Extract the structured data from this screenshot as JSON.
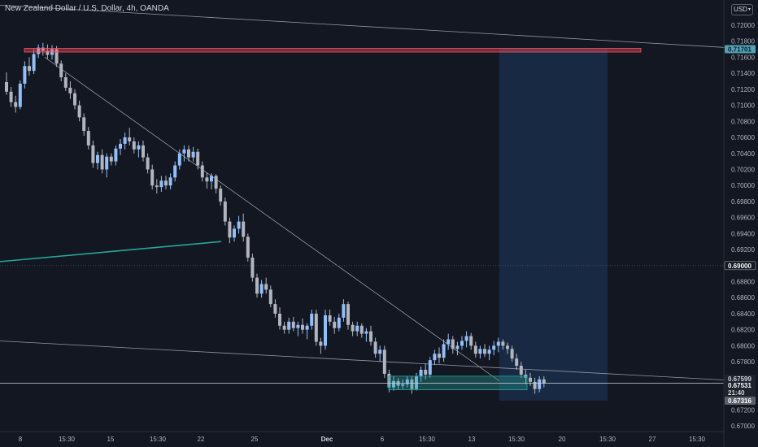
{
  "header": {
    "title": "New Zealand Dollar / U.S. Dollar, 4h, OANDA",
    "currency": "USD"
  },
  "colors": {
    "background": "#131722",
    "candle_up": "#90bff9",
    "candle_down": "#b2b5be",
    "resistance_zone": "#f7525f",
    "target_zone": "#26a69a",
    "projection_zone": "#1e3a5f",
    "price_label_bg": "#4fa3b6"
  },
  "chart_data": {
    "type": "candlestick",
    "symbol": "NZD/USD",
    "interval": "4h",
    "ylim": [
      0.6695,
      0.7235
    ],
    "grid": false,
    "price_ticks": [
      "0.72000",
      "0.71800",
      "0.71600",
      "0.71400",
      "0.71200",
      "0.71000",
      "0.70800",
      "0.70600",
      "0.70400",
      "0.70200",
      "0.70000",
      "0.69800",
      "0.69600",
      "0.69400",
      "0.69200",
      "0.68800",
      "0.68600",
      "0.68400",
      "0.68200",
      "0.68000",
      "0.67800",
      "0.67200",
      "0.67000"
    ],
    "time_ticks": [
      "8",
      "15:30",
      "15",
      "15:30",
      "22",
      "25",
      "Dec",
      "6",
      "15:30",
      "13",
      "15:30",
      "20",
      "15:30",
      "27",
      "15:30"
    ],
    "price_labels": [
      {
        "value": "0.71701",
        "style": "highlight"
      },
      {
        "value": "0.69000",
        "style": "crosshair"
      },
      {
        "value": "0.67599",
        "style": "dark"
      },
      {
        "value": "0.67531",
        "style": "current"
      },
      {
        "value": "21:40",
        "style": "countdown"
      },
      {
        "value": "0.67316",
        "style": "grey"
      }
    ],
    "horizontal_level": 0.67531,
    "crosshair_level": 0.69,
    "resistance_zone": {
      "from": 0.71701,
      "to": 0.71675
    },
    "target_zone": {
      "from": 0.6762,
      "to": 0.6745
    },
    "candles": [
      [
        0.7129,
        0.7141,
        0.7113,
        0.7117
      ],
      [
        0.7117,
        0.7123,
        0.7098,
        0.7104
      ],
      [
        0.7104,
        0.7112,
        0.7091,
        0.7098
      ],
      [
        0.7098,
        0.7131,
        0.7095,
        0.7127
      ],
      [
        0.7127,
        0.7155,
        0.7121,
        0.7149
      ],
      [
        0.7149,
        0.716,
        0.7137,
        0.7143
      ],
      [
        0.7143,
        0.717,
        0.7139,
        0.7164
      ],
      [
        0.7164,
        0.7176,
        0.7159,
        0.7172
      ],
      [
        0.7172,
        0.7178,
        0.7162,
        0.7168
      ],
      [
        0.7168,
        0.7176,
        0.7158,
        0.7163
      ],
      [
        0.7163,
        0.7175,
        0.7157,
        0.717
      ],
      [
        0.717,
        0.7174,
        0.7148,
        0.7152
      ],
      [
        0.7152,
        0.7156,
        0.713,
        0.7135
      ],
      [
        0.7135,
        0.714,
        0.7118,
        0.7122
      ],
      [
        0.7122,
        0.713,
        0.7108,
        0.7115
      ],
      [
        0.7115,
        0.712,
        0.7095,
        0.71
      ],
      [
        0.71,
        0.7106,
        0.708,
        0.7085
      ],
      [
        0.7085,
        0.709,
        0.7062,
        0.7068
      ],
      [
        0.7068,
        0.7073,
        0.7045,
        0.705
      ],
      [
        0.705,
        0.7056,
        0.7022,
        0.7028
      ],
      [
        0.7028,
        0.7042,
        0.702,
        0.7038
      ],
      [
        0.7038,
        0.7045,
        0.7015,
        0.702
      ],
      [
        0.702,
        0.704,
        0.701,
        0.7036
      ],
      [
        0.7036,
        0.704,
        0.7025,
        0.703
      ],
      [
        0.703,
        0.705,
        0.7025,
        0.7046
      ],
      [
        0.7046,
        0.7058,
        0.7038,
        0.7052
      ],
      [
        0.7052,
        0.7066,
        0.7045,
        0.706
      ],
      [
        0.706,
        0.7072,
        0.705,
        0.7055
      ],
      [
        0.7055,
        0.706,
        0.704,
        0.7045
      ],
      [
        0.7045,
        0.7055,
        0.7035,
        0.705
      ],
      [
        0.705,
        0.7056,
        0.703,
        0.7035
      ],
      [
        0.7035,
        0.704,
        0.7015,
        0.702
      ],
      [
        0.702,
        0.7026,
        0.6995,
        0.7
      ],
      [
        0.7,
        0.7008,
        0.699,
        0.6998
      ],
      [
        0.6998,
        0.7012,
        0.6992,
        0.7006
      ],
      [
        0.7006,
        0.7012,
        0.6995,
        0.7
      ],
      [
        0.7,
        0.7015,
        0.6995,
        0.701
      ],
      [
        0.701,
        0.703,
        0.7005,
        0.7025
      ],
      [
        0.7025,
        0.7045,
        0.702,
        0.704
      ],
      [
        0.704,
        0.705,
        0.703,
        0.7045
      ],
      [
        0.7045,
        0.705,
        0.703,
        0.7035
      ],
      [
        0.7035,
        0.7048,
        0.703,
        0.7042
      ],
      [
        0.7042,
        0.7046,
        0.702,
        0.7025
      ],
      [
        0.7025,
        0.703,
        0.7005,
        0.701
      ],
      [
        0.701,
        0.7016,
        0.6996,
        0.7005
      ],
      [
        0.7005,
        0.7015,
        0.6995,
        0.7012
      ],
      [
        0.7012,
        0.7014,
        0.699,
        0.6996
      ],
      [
        0.6996,
        0.7,
        0.6975,
        0.698
      ],
      [
        0.698,
        0.6985,
        0.695,
        0.6955
      ],
      [
        0.6955,
        0.696,
        0.6928,
        0.6935
      ],
      [
        0.6935,
        0.695,
        0.693,
        0.6946
      ],
      [
        0.6946,
        0.6962,
        0.694,
        0.6955
      ],
      [
        0.6955,
        0.6965,
        0.693,
        0.6936
      ],
      [
        0.6936,
        0.694,
        0.6905,
        0.691
      ],
      [
        0.691,
        0.6915,
        0.688,
        0.6885
      ],
      [
        0.6885,
        0.689,
        0.686,
        0.6865
      ],
      [
        0.6865,
        0.6882,
        0.686,
        0.6877
      ],
      [
        0.6877,
        0.6885,
        0.6865,
        0.687
      ],
      [
        0.687,
        0.6875,
        0.6848,
        0.6852
      ],
      [
        0.6852,
        0.6858,
        0.6835,
        0.684
      ],
      [
        0.684,
        0.6848,
        0.682,
        0.6825
      ],
      [
        0.6825,
        0.683,
        0.6815,
        0.682
      ],
      [
        0.682,
        0.6835,
        0.6815,
        0.683
      ],
      [
        0.683,
        0.6836,
        0.6818,
        0.6822
      ],
      [
        0.6822,
        0.683,
        0.6812,
        0.6826
      ],
      [
        0.6826,
        0.6834,
        0.6815,
        0.682
      ],
      [
        0.682,
        0.6828,
        0.6808,
        0.6825
      ],
      [
        0.6825,
        0.6845,
        0.682,
        0.684
      ],
      [
        0.684,
        0.6845,
        0.68,
        0.6805
      ],
      [
        0.6805,
        0.681,
        0.679,
        0.68
      ],
      [
        0.68,
        0.6845,
        0.6795,
        0.6838
      ],
      [
        0.6838,
        0.6845,
        0.6825,
        0.683
      ],
      [
        0.683,
        0.6836,
        0.6815,
        0.6822
      ],
      [
        0.6822,
        0.684,
        0.6818,
        0.6835
      ],
      [
        0.6835,
        0.6858,
        0.683,
        0.6852
      ],
      [
        0.6852,
        0.6855,
        0.682,
        0.6826
      ],
      [
        0.6826,
        0.683,
        0.6812,
        0.6818
      ],
      [
        0.6818,
        0.683,
        0.6812,
        0.6825
      ],
      [
        0.6825,
        0.6828,
        0.681,
        0.6815
      ],
      [
        0.6815,
        0.6822,
        0.6805,
        0.6818
      ],
      [
        0.6818,
        0.6825,
        0.68,
        0.6805
      ],
      [
        0.6805,
        0.681,
        0.6785,
        0.679
      ],
      [
        0.679,
        0.68,
        0.678,
        0.6795
      ],
      [
        0.6795,
        0.68,
        0.676,
        0.6765
      ],
      [
        0.6765,
        0.677,
        0.6742,
        0.6748
      ],
      [
        0.6748,
        0.6762,
        0.6744,
        0.6756
      ],
      [
        0.6756,
        0.676,
        0.6745,
        0.675
      ],
      [
        0.675,
        0.6758,
        0.6746,
        0.6752
      ],
      [
        0.6752,
        0.6762,
        0.6748,
        0.6758
      ],
      [
        0.6758,
        0.6762,
        0.674,
        0.6746
      ],
      [
        0.6746,
        0.6766,
        0.6744,
        0.6762
      ],
      [
        0.6762,
        0.6774,
        0.6755,
        0.677
      ],
      [
        0.677,
        0.6778,
        0.6758,
        0.6764
      ],
      [
        0.6764,
        0.6786,
        0.676,
        0.6782
      ],
      [
        0.6782,
        0.6795,
        0.6776,
        0.679
      ],
      [
        0.679,
        0.6798,
        0.6778,
        0.6785
      ],
      [
        0.6785,
        0.6808,
        0.678,
        0.6802
      ],
      [
        0.6802,
        0.6815,
        0.6795,
        0.6808
      ],
      [
        0.6808,
        0.6812,
        0.679,
        0.6796
      ],
      [
        0.6796,
        0.6805,
        0.6788,
        0.68
      ],
      [
        0.68,
        0.6812,
        0.6795,
        0.6806
      ],
      [
        0.6806,
        0.6818,
        0.6798,
        0.6812
      ],
      [
        0.6812,
        0.6816,
        0.6795,
        0.68
      ],
      [
        0.68,
        0.6805,
        0.6785,
        0.679
      ],
      [
        0.679,
        0.68,
        0.6784,
        0.6796
      ],
      [
        0.6796,
        0.6802,
        0.6786,
        0.679
      ],
      [
        0.679,
        0.68,
        0.6782,
        0.6795
      ],
      [
        0.6795,
        0.6806,
        0.6788,
        0.68
      ],
      [
        0.68,
        0.681,
        0.6792,
        0.6805
      ],
      [
        0.6805,
        0.6808,
        0.6795,
        0.68
      ],
      [
        0.68,
        0.6804,
        0.679,
        0.6796
      ],
      [
        0.6796,
        0.68,
        0.678,
        0.6784
      ],
      [
        0.6784,
        0.679,
        0.677,
        0.6775
      ],
      [
        0.6775,
        0.678,
        0.676,
        0.6764
      ],
      [
        0.6764,
        0.677,
        0.6752,
        0.676
      ],
      [
        0.676,
        0.6766,
        0.675,
        0.6755
      ],
      [
        0.6755,
        0.676,
        0.674,
        0.6746
      ],
      [
        0.6746,
        0.6762,
        0.6742,
        0.6758
      ],
      [
        0.6758,
        0.6762,
        0.6748,
        0.6753
      ]
    ],
    "drawings": [
      {
        "type": "trendline",
        "from": [
          "8",
          0.716
        ],
        "to": [
          "13",
          0.6756
        ]
      },
      {
        "type": "trendline",
        "from": [
          "8",
          0.7225
        ],
        "to": [
          "27",
          0.7172
        ]
      },
      {
        "type": "trendline",
        "from": [
          "8",
          0.6806
        ],
        "to": [
          "27",
          0.6757
        ]
      },
      {
        "type": "trendline",
        "from": [
          "8",
          0.6905
        ],
        "to": [
          "22",
          0.693
        ]
      },
      {
        "type": "position_projection",
        "from": 0.71701,
        "to": 0.67316
      }
    ]
  }
}
